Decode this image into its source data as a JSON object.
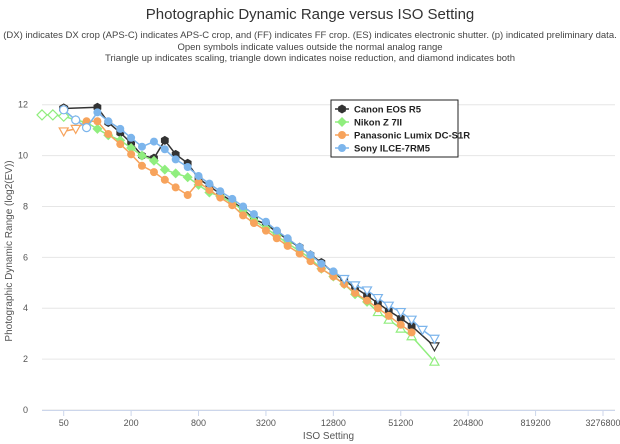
{
  "chart_data": {
    "type": "line",
    "title": "Photographic Dynamic Range versus ISO Setting",
    "subtitle": [
      "(DX) indicates DX crop (APS-C) indicates APS-C crop, and (FF) indicates FF crop. (ES) indicates electronic shutter. (p) indicated preliminary data.",
      "Open symbols indicate values outside the normal analog range",
      "Triangle up indicates scaling, triangle down indicates noise reduction, and diamond indicates both"
    ],
    "xlabel": "ISO Setting",
    "ylabel": "Photographic Dynamic Range (log2(EV))",
    "x_scale": "log2",
    "xlim": [
      32,
      4194304
    ],
    "ylim": [
      0,
      12.5
    ],
    "x_ticks": [
      50,
      200,
      800,
      3200,
      12800,
      51200,
      204800,
      819200,
      3276800
    ],
    "y_ticks": [
      0,
      2,
      4,
      6,
      8,
      10,
      12
    ],
    "legend_position": "top-right",
    "series": [
      {
        "name": "Canon EOS R5",
        "color": "#333333",
        "marker": "hexagon",
        "points": [
          [
            50,
            11.85,
            "out"
          ],
          [
            100,
            11.9
          ],
          [
            125,
            11.3
          ],
          [
            160,
            10.9
          ],
          [
            200,
            10.5
          ],
          [
            250,
            10.0
          ],
          [
            320,
            9.9
          ],
          [
            400,
            10.6
          ],
          [
            500,
            10.05
          ],
          [
            640,
            9.7
          ],
          [
            800,
            9.1
          ],
          [
            1000,
            8.8
          ],
          [
            1250,
            8.5
          ],
          [
            1600,
            8.2
          ],
          [
            2000,
            7.9
          ],
          [
            2500,
            7.5
          ],
          [
            3200,
            7.3
          ],
          [
            4000,
            7.0
          ],
          [
            5000,
            6.7
          ],
          [
            6400,
            6.4
          ],
          [
            8000,
            6.1
          ],
          [
            10000,
            5.8
          ],
          [
            12800,
            5.4
          ],
          [
            16000,
            5.1
          ],
          [
            20000,
            4.8
          ],
          [
            25600,
            4.5
          ],
          [
            32000,
            4.2
          ],
          [
            40000,
            3.9
          ],
          [
            51200,
            3.6
          ],
          [
            64000,
            3.3
          ],
          [
            102400,
            2.5,
            "down"
          ]
        ]
      },
      {
        "name": "Nikon Z 7II",
        "color": "#90ee7e",
        "marker": "diamond",
        "points": [
          [
            32,
            11.6,
            "out"
          ],
          [
            40,
            11.6,
            "out"
          ],
          [
            50,
            11.55,
            "out"
          ],
          [
            64,
            11.4
          ],
          [
            80,
            11.3
          ],
          [
            100,
            11.05
          ],
          [
            125,
            10.8
          ],
          [
            160,
            10.6
          ],
          [
            200,
            10.3
          ],
          [
            250,
            10.0
          ],
          [
            320,
            9.8
          ],
          [
            400,
            9.45
          ],
          [
            500,
            9.3
          ],
          [
            640,
            9.15
          ],
          [
            800,
            8.85
          ],
          [
            1000,
            8.55
          ],
          [
            1250,
            8.4
          ],
          [
            1600,
            8.15
          ],
          [
            2000,
            7.85
          ],
          [
            2500,
            7.45
          ],
          [
            3200,
            7.15
          ],
          [
            4000,
            6.85
          ],
          [
            5000,
            6.55
          ],
          [
            6400,
            6.25
          ],
          [
            8000,
            5.95
          ],
          [
            10000,
            5.55
          ],
          [
            12800,
            5.25
          ],
          [
            16000,
            4.95
          ],
          [
            20000,
            4.55
          ],
          [
            25600,
            4.25
          ],
          [
            32000,
            3.85,
            "up"
          ],
          [
            40000,
            3.55,
            "up"
          ],
          [
            51200,
            3.2,
            "up"
          ],
          [
            64000,
            2.9,
            "up"
          ],
          [
            102400,
            1.9,
            "up"
          ]
        ]
      },
      {
        "name": "Panasonic Lumix DC-S1R",
        "color": "#f7a35c",
        "marker": "circle",
        "points": [
          [
            50,
            10.95,
            "down"
          ],
          [
            64,
            11.05,
            "down"
          ],
          [
            80,
            11.35
          ],
          [
            100,
            11.35
          ],
          [
            125,
            10.85
          ],
          [
            160,
            10.45
          ],
          [
            200,
            10.05
          ],
          [
            250,
            9.6
          ],
          [
            320,
            9.35
          ],
          [
            400,
            9.05
          ],
          [
            500,
            8.75
          ],
          [
            640,
            8.45
          ],
          [
            800,
            8.95
          ],
          [
            1000,
            8.65
          ],
          [
            1250,
            8.35
          ],
          [
            1600,
            8.05
          ],
          [
            2000,
            7.65
          ],
          [
            2500,
            7.35
          ],
          [
            3200,
            7.05
          ],
          [
            4000,
            6.75
          ],
          [
            5000,
            6.45
          ],
          [
            6400,
            6.15
          ],
          [
            8000,
            5.85
          ],
          [
            10000,
            5.55
          ],
          [
            12800,
            5.25
          ],
          [
            16000,
            4.95
          ],
          [
            20000,
            4.6
          ],
          [
            25600,
            4.3
          ],
          [
            32000,
            4.0
          ],
          [
            40000,
            3.7
          ],
          [
            51200,
            3.35
          ],
          [
            64000,
            3.05
          ]
        ]
      },
      {
        "name": "Sony ILCE-7RM5",
        "color": "#7cb5ec",
        "marker": "circle",
        "points": [
          [
            50,
            11.8,
            "out"
          ],
          [
            64,
            11.4,
            "out"
          ],
          [
            80,
            11.1,
            "out"
          ],
          [
            100,
            11.7
          ],
          [
            125,
            11.35
          ],
          [
            160,
            11.05
          ],
          [
            200,
            10.7
          ],
          [
            250,
            10.35
          ],
          [
            320,
            10.55
          ],
          [
            400,
            10.25
          ],
          [
            500,
            9.85
          ],
          [
            640,
            9.55
          ],
          [
            800,
            9.2
          ],
          [
            1000,
            8.9
          ],
          [
            1250,
            8.6
          ],
          [
            1600,
            8.3
          ],
          [
            2000,
            8.0
          ],
          [
            2500,
            7.7
          ],
          [
            3200,
            7.4
          ],
          [
            4000,
            7.05
          ],
          [
            5000,
            6.75
          ],
          [
            6400,
            6.4
          ],
          [
            8000,
            6.1
          ],
          [
            10000,
            5.75
          ],
          [
            12800,
            5.45
          ],
          [
            16000,
            5.15,
            "down"
          ],
          [
            20000,
            4.9,
            "down"
          ],
          [
            25600,
            4.7,
            "down"
          ],
          [
            32000,
            4.4,
            "down"
          ],
          [
            40000,
            4.1,
            "down"
          ],
          [
            51200,
            3.85,
            "down"
          ],
          [
            64000,
            3.55,
            "down"
          ],
          [
            80000,
            3.15,
            "down"
          ],
          [
            102400,
            2.8,
            "down"
          ]
        ]
      }
    ]
  }
}
